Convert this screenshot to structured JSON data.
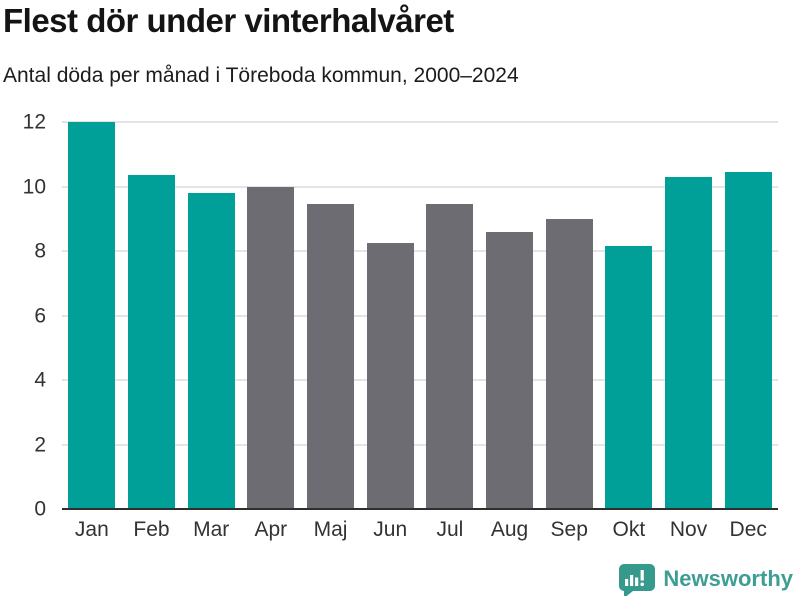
{
  "chart_data": {
    "type": "bar",
    "title": "Flest dör under vinterhalvåret",
    "subtitle": "Antal döda per månad i Töreboda kommun, 2000–2024",
    "categories": [
      "Jan",
      "Feb",
      "Mar",
      "Apr",
      "Maj",
      "Jun",
      "Jul",
      "Aug",
      "Sep",
      "Okt",
      "Nov",
      "Dec"
    ],
    "values": [
      12,
      10.35,
      9.8,
      10,
      9.45,
      8.25,
      9.45,
      8.6,
      9,
      8.15,
      10.3,
      10.45
    ],
    "bar_colors": [
      "#00a099",
      "#00a099",
      "#00a099",
      "#6d6c72",
      "#6d6c72",
      "#6d6c72",
      "#6d6c72",
      "#6d6c72",
      "#6d6c72",
      "#00a099",
      "#00a099",
      "#00a099"
    ],
    "highlight_color": "#00a099",
    "neutral_color": "#6d6c72",
    "xlabel": "",
    "ylabel": "",
    "ylim": [
      0,
      12
    ],
    "yticks": [
      0,
      2,
      4,
      6,
      8,
      10,
      12
    ],
    "grid": "horizontal",
    "legend": "none"
  },
  "footer": {
    "brand": "Newsworthy",
    "logo_icon": "newsworthy-logo-icon",
    "brand_color": "#3f9e93",
    "logo_bg_color": "#35998c"
  }
}
